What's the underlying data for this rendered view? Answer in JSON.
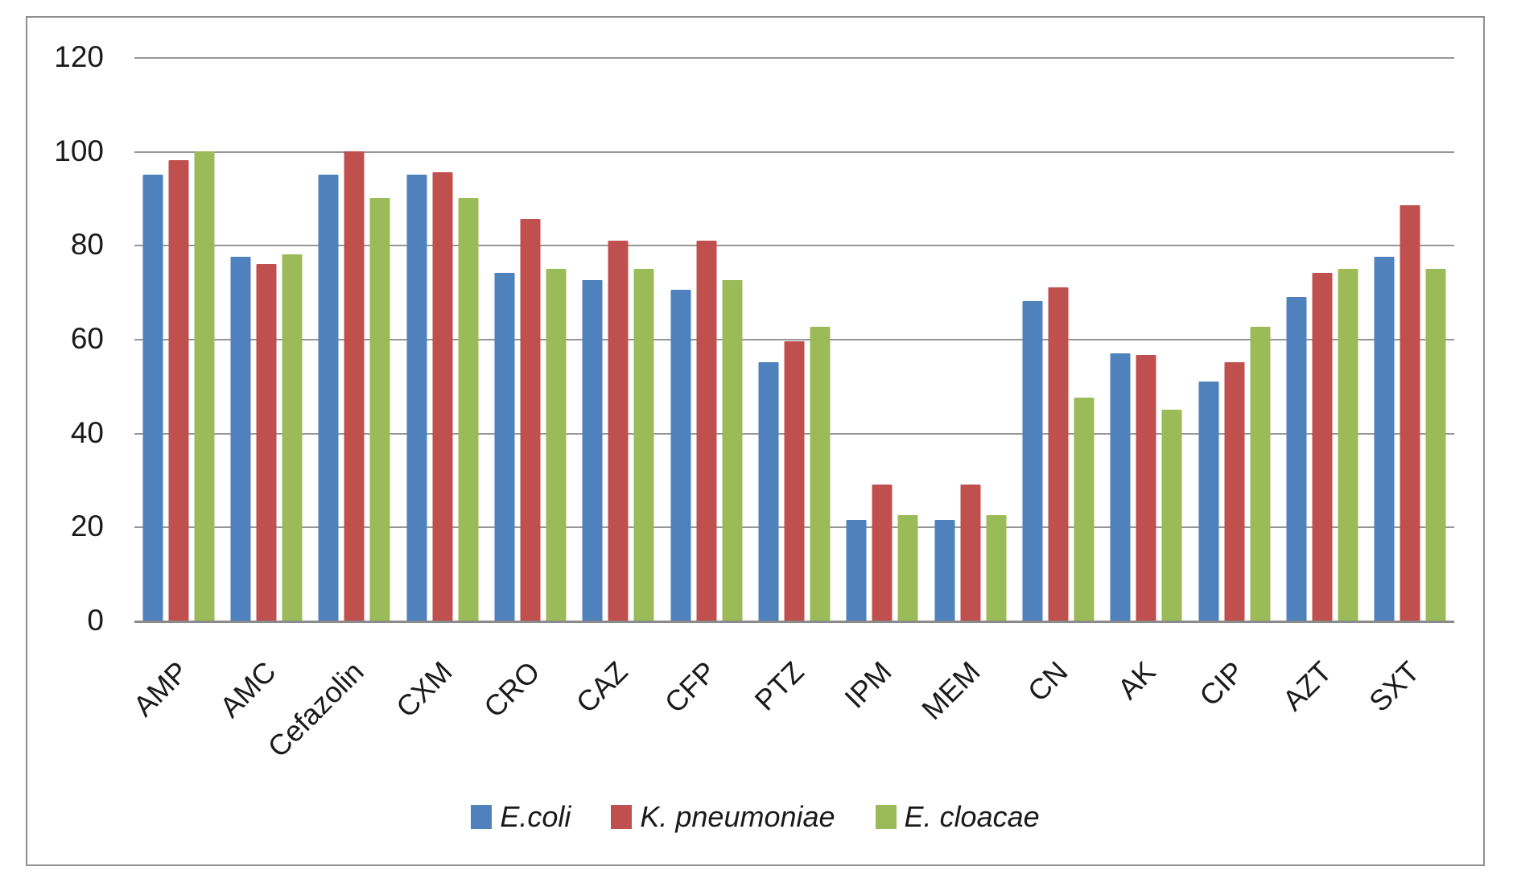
{
  "chart_data": {
    "type": "bar",
    "title": "",
    "xlabel": "",
    "ylabel": "",
    "ylim": [
      0,
      120
    ],
    "yticks": [
      0,
      20,
      40,
      60,
      80,
      100,
      120
    ],
    "grid": true,
    "legend_position": "bottom-center",
    "categories": [
      "AMP",
      "AMC",
      "Cefazolin",
      "CXM",
      "CRO",
      "CAZ",
      "CFP",
      "PTZ",
      "IPM",
      "MEM",
      "CN",
      "AK",
      "CIP",
      "AZT",
      "SXT"
    ],
    "series": [
      {
        "name": "E.coli",
        "color": "#4F81BD",
        "values": [
          95,
          77.5,
          95,
          95,
          74,
          72.5,
          70.5,
          55,
          21.5,
          21.5,
          68,
          57,
          51,
          69,
          77.5
        ]
      },
      {
        "name": "K. pneumoniae",
        "color": "#C0504D",
        "values": [
          98,
          76,
          100,
          95.5,
          85.5,
          81,
          81,
          59.5,
          29,
          29,
          71,
          56.5,
          55,
          74,
          88.5
        ]
      },
      {
        "name": "E. cloacae",
        "color": "#9BBB59",
        "values": [
          100,
          78,
          90,
          90,
          75,
          75,
          72.5,
          62.5,
          22.5,
          22.5,
          47.5,
          45,
          62.5,
          75,
          75
        ]
      }
    ]
  },
  "style": {
    "gridline_color": "#969696",
    "axis_text_color": "#1a1a1a",
    "frame_border_color": "#8f8f8f",
    "background": "#ffffff"
  }
}
